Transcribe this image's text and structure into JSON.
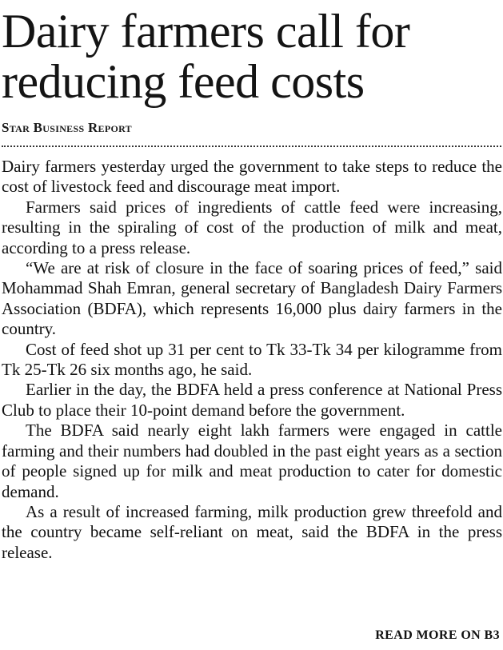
{
  "article": {
    "headline": "Dairy farmers call for reducing feed costs",
    "byline": "Star Business Report",
    "paragraphs": [
      "Dairy farmers yesterday urged the government to take steps to reduce the cost of livestock feed and discourage meat import.",
      "Farmers said prices of ingredients of cattle feed were increasing, resulting in the spiraling of cost of the production of milk and meat, according to a press release.",
      "“We are at risk of closure in the face of soaring prices of feed,” said Mohammad Shah Emran, general secretary of Bangladesh Dairy Farmers Association (BDFA), which represents 16,000 plus dairy farmers in the country.",
      "Cost of feed shot up 31 per cent to Tk 33-Tk 34 per kilogramme from Tk 25-Tk 26 six months ago, he said.",
      "Earlier in the day, the BDFA held a press conference at National Press Club to place their 10-point demand before the government.",
      "The BDFA said nearly eight lakh farmers were engaged in cattle farming and their numbers had doubled in the past eight years as a section of people signed up for milk and meat production to cater for domestic demand.",
      "As a result of increased farming, milk production grew threefold and the country became self-reliant on meat, said the BDFA in the press release."
    ],
    "read_more": "READ MORE ON B3"
  }
}
